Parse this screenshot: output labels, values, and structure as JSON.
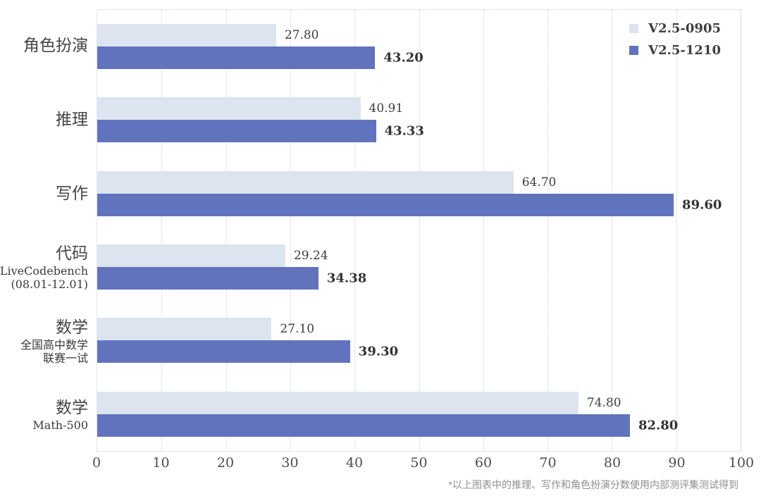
{
  "chart_data": {
    "type": "bar",
    "orientation": "horizontal",
    "categories": [
      {
        "label": "角色扮演",
        "sublabels": []
      },
      {
        "label": "推理",
        "sublabels": []
      },
      {
        "label": "写作",
        "sublabels": []
      },
      {
        "label": "代码",
        "sublabels": [
          "LiveCodebench",
          "(08.01-12.01)"
        ]
      },
      {
        "label": "数学",
        "sublabels": [
          "全国高中数学",
          "联赛一试"
        ]
      },
      {
        "label": "数学",
        "sublabels": [
          "Math-500"
        ]
      }
    ],
    "series": [
      {
        "name": "V2.5-0905",
        "color": "#dce4ef",
        "values": [
          27.8,
          40.91,
          64.7,
          29.24,
          27.1,
          74.8
        ],
        "labels": [
          "27.80",
          "40.91",
          "64.70",
          "29.24",
          "27.10",
          "74.80"
        ],
        "bold_labels": false
      },
      {
        "name": "V2.5-1210",
        "color": "#6173bd",
        "values": [
          43.2,
          43.33,
          89.6,
          34.38,
          39.3,
          82.8
        ],
        "labels": [
          "43.20",
          "43.33",
          "89.60",
          "34.38",
          "39.30",
          "82.80"
        ],
        "bold_labels": true
      }
    ],
    "xlim": [
      0,
      100
    ],
    "xticks": [
      0,
      10,
      20,
      30,
      40,
      50,
      60,
      70,
      80,
      90,
      100
    ],
    "grid": "vertical dotted",
    "legend_position": "top-right",
    "title": "",
    "xlabel": "",
    "ylabel": ""
  },
  "footnote": "*以上图表中的推理、写作和角色扮演分数使用内部测评集测试得到"
}
